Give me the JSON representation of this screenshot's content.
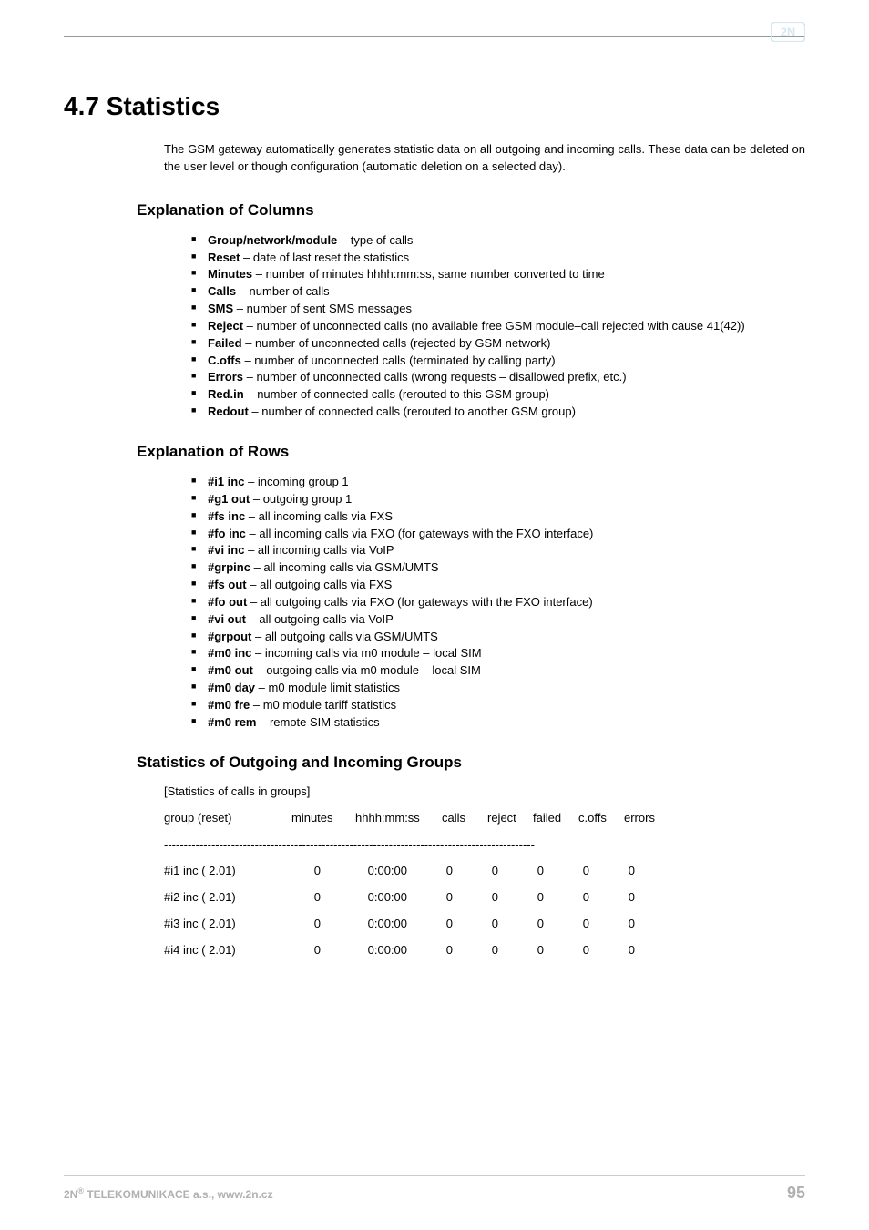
{
  "logo": {
    "fill": "#d5e8ef",
    "text": "2N"
  },
  "title": "4.7 Statistics",
  "intro": "The GSM gateway automatically generates statistic data on all outgoing and incoming calls. These data can be deleted on the user level or though configuration (automatic deletion on a selected day).",
  "section_cols": {
    "heading": "Explanation of Columns",
    "items": [
      {
        "term": "Group/network/module",
        "desc": " – type of calls"
      },
      {
        "term": "Reset",
        "desc": " – date of last reset the statistics"
      },
      {
        "term": "Minutes",
        "desc": " – number of minutes hhhh:mm:ss, same number converted to time"
      },
      {
        "term": "Calls",
        "desc": " – number of calls"
      },
      {
        "term": "SMS",
        "desc": " – number of sent SMS messages"
      },
      {
        "term": "Reject",
        "desc": " – number of unconnected calls (no available free GSM module–call rejected with cause 41(42))"
      },
      {
        "term": "Failed",
        "desc": " – number of unconnected calls (rejected by GSM network)"
      },
      {
        "term": "C.offs",
        "desc": " – number of unconnected calls (terminated by calling party)"
      },
      {
        "term": "Errors",
        "desc": " – number of unconnected calls (wrong requests – disallowed prefix, etc.)"
      },
      {
        "term": "Red.in",
        "desc": " – number of connected calls (rerouted to this GSM group)"
      },
      {
        "term": "Redout",
        "desc": " – number of connected calls (rerouted to another GSM group)"
      }
    ]
  },
  "section_rows": {
    "heading": "Explanation of Rows",
    "items": [
      {
        "term": "#i1 inc",
        "desc": " – incoming group 1"
      },
      {
        "term": "#g1 out",
        "desc": " – outgoing group 1"
      },
      {
        "term": "#fs inc",
        "desc": " – all incoming calls via FXS"
      },
      {
        "term": "#fo inc",
        "desc": " – all incoming calls via FXO (for gateways with the FXO interface)"
      },
      {
        "term": "#vi inc",
        "desc": " – all incoming calls via VoIP"
      },
      {
        "term": "#grpinc",
        "desc": " – all incoming calls via GSM/UMTS"
      },
      {
        "term": "#fs out",
        "desc": "  – all outgoing calls via FXS"
      },
      {
        "term": "#fo out",
        "desc": "  – all outgoing calls via FXO (for gateways with the FXO interface)"
      },
      {
        "term": "#vi out",
        "desc": " – all outgoing calls via VoIP"
      },
      {
        "term": "#grpout",
        "desc": " – all outgoing calls via GSM/UMTS"
      },
      {
        "term": "#m0 inc",
        "desc": " – incoming calls via m0 module – local SIM"
      },
      {
        "term": "#m0 out",
        "desc": " – outgoing calls via m0 module – local SIM"
      },
      {
        "term": "#m0 day",
        "desc": " – m0 module limit statistics"
      },
      {
        "term": "#m0 fre",
        "desc": " – m0 module tariff statistics"
      },
      {
        "term": "#m0 rem",
        "desc": " – remote SIM statistics"
      }
    ]
  },
  "section_stats": {
    "heading": "Statistics of Outgoing and Incoming Groups",
    "caption": "[Statistics of calls in groups]",
    "header": [
      "group   (reset)",
      "minutes",
      "hhhh:mm:ss",
      "calls",
      "reject",
      "failed",
      "c.offs",
      "errors"
    ],
    "dash": "----------------------------------------------------------------------------------------------",
    "rows": [
      {
        "label": "#i1 inc ( 2.01)",
        "minutes": "0",
        "hms": "0:00:00",
        "calls": "0",
        "reject": "0",
        "failed": "0",
        "coffs": "0",
        "errors": "0"
      },
      {
        "label": "#i2 inc ( 2.01)",
        "minutes": "0",
        "hms": "0:00:00",
        "calls": "0",
        "reject": "0",
        "failed": "0",
        "coffs": "0",
        "errors": "0"
      },
      {
        "label": "#i3 inc ( 2.01)",
        "minutes": "0",
        "hms": "0:00:00",
        "calls": "0",
        "reject": "0",
        "failed": "0",
        "coffs": "0",
        "errors": "0"
      },
      {
        "label": "#i4 inc ( 2.01)",
        "minutes": "0",
        "hms": "0:00:00",
        "calls": "0",
        "reject": "0",
        "failed": "0",
        "coffs": "0",
        "errors": "0"
      }
    ]
  },
  "footer": {
    "left_prefix": "2N",
    "left_sup": "®",
    "left_rest": " TELEKOMUNIKACE a.s., www.2n.cz",
    "page": "95"
  }
}
